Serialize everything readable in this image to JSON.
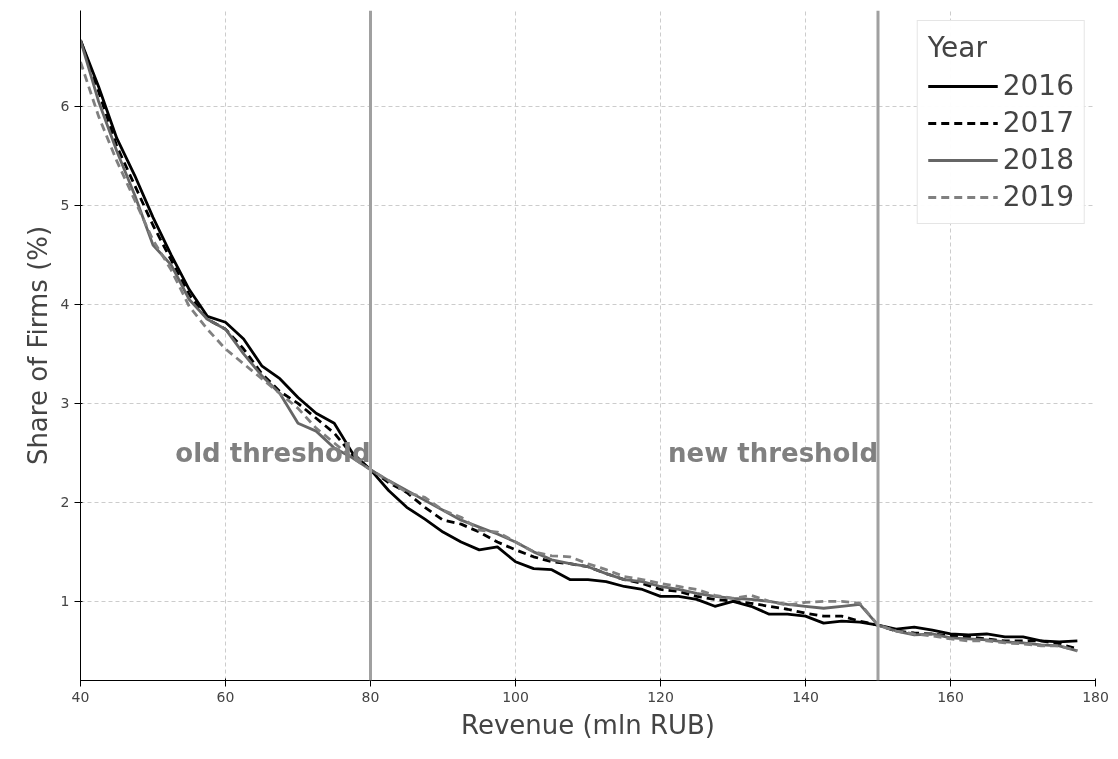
{
  "chart_data": {
    "type": "line",
    "xlabel": "Revenue (mln RUB)",
    "ylabel": "Share of Firms (%)",
    "legend_title": "Year",
    "x": [
      40,
      42.5,
      45,
      47.5,
      50,
      52.5,
      55,
      57.5,
      60,
      62.5,
      65,
      67.5,
      70,
      72.5,
      75,
      77.5,
      80,
      82.5,
      85,
      87.5,
      90,
      92.5,
      95,
      97.5,
      100,
      102.5,
      105,
      107.5,
      110,
      112.5,
      115,
      117.5,
      120,
      122.5,
      125,
      127.5,
      130,
      132.5,
      135,
      137.5,
      140,
      142.5,
      145,
      147.5,
      150,
      152.5,
      155,
      157.5,
      160,
      162.5,
      165,
      167.5,
      170,
      172.5,
      175,
      177.5
    ],
    "series": [
      {
        "name": "2016",
        "color": "#000000",
        "line_style": "solid",
        "values": [
          6.67,
          6.2,
          5.68,
          5.3,
          4.88,
          4.5,
          4.15,
          3.88,
          3.82,
          3.65,
          3.38,
          3.25,
          3.06,
          2.9,
          2.8,
          2.5,
          2.33,
          2.12,
          1.95,
          1.83,
          1.7,
          1.6,
          1.52,
          1.55,
          1.4,
          1.33,
          1.32,
          1.22,
          1.22,
          1.2,
          1.15,
          1.12,
          1.05,
          1.05,
          1.02,
          0.95,
          1.0,
          0.95,
          0.87,
          0.87,
          0.85,
          0.78,
          0.8,
          0.79,
          0.76,
          0.72,
          0.74,
          0.71,
          0.67,
          0.66,
          0.67,
          0.64,
          0.64,
          0.6,
          0.59,
          0.6
        ]
      },
      {
        "name": "2017",
        "color": "#000000",
        "line_style": "dashed",
        "values": [
          6.67,
          6.15,
          5.6,
          5.2,
          4.8,
          4.45,
          4.1,
          3.85,
          3.75,
          3.55,
          3.3,
          3.12,
          3.0,
          2.85,
          2.7,
          2.48,
          2.33,
          2.2,
          2.1,
          1.95,
          1.82,
          1.78,
          1.7,
          1.6,
          1.52,
          1.45,
          1.4,
          1.38,
          1.35,
          1.28,
          1.22,
          1.18,
          1.12,
          1.1,
          1.05,
          1.02,
          1.0,
          0.98,
          0.95,
          0.92,
          0.88,
          0.85,
          0.85,
          0.8,
          0.76,
          0.7,
          0.68,
          0.67,
          0.65,
          0.64,
          0.62,
          0.6,
          0.6,
          0.6,
          0.57,
          0.52
        ]
      },
      {
        "name": "2018",
        "color": "#666666",
        "line_style": "solid",
        "values": [
          6.67,
          6.05,
          5.55,
          5.1,
          4.6,
          4.4,
          4.05,
          3.85,
          3.75,
          3.5,
          3.28,
          3.1,
          2.8,
          2.72,
          2.55,
          2.45,
          2.33,
          2.22,
          2.12,
          2.02,
          1.92,
          1.82,
          1.75,
          1.68,
          1.6,
          1.5,
          1.42,
          1.38,
          1.35,
          1.28,
          1.22,
          1.2,
          1.15,
          1.12,
          1.08,
          1.05,
          1.03,
          1.02,
          1.0,
          0.97,
          0.95,
          0.93,
          0.95,
          0.97,
          0.76,
          0.7,
          0.66,
          0.67,
          0.63,
          0.62,
          0.61,
          0.59,
          0.58,
          0.56,
          0.55,
          0.5
        ]
      },
      {
        "name": "2019",
        "color": "#808080",
        "line_style": "dashed",
        "values": [
          6.45,
          5.9,
          5.45,
          5.05,
          4.65,
          4.35,
          3.98,
          3.75,
          3.55,
          3.4,
          3.25,
          3.1,
          2.95,
          2.75,
          2.6,
          2.45,
          2.33,
          2.22,
          2.1,
          2.05,
          1.92,
          1.85,
          1.72,
          1.7,
          1.6,
          1.5,
          1.46,
          1.45,
          1.38,
          1.32,
          1.25,
          1.22,
          1.18,
          1.15,
          1.12,
          1.06,
          1.03,
          1.06,
          1.0,
          0.96,
          0.99,
          1.0,
          1.0,
          0.98,
          0.76,
          0.7,
          0.67,
          0.65,
          0.62,
          0.6,
          0.6,
          0.58,
          0.57,
          0.55,
          0.55,
          0.5
        ]
      }
    ],
    "xlim": [
      40,
      180
    ],
    "xticks": [
      40,
      60,
      80,
      100,
      120,
      140,
      160,
      180
    ],
    "ylim": [
      0.2,
      6.97
    ],
    "yticks": [
      1,
      2,
      3,
      4,
      5,
      6
    ],
    "ref_lines": [
      {
        "axis": "x",
        "value": 80,
        "label": null,
        "color": "#a0a0a0"
      },
      {
        "axis": "x",
        "value": 150,
        "label": null,
        "color": "#a0a0a0"
      }
    ],
    "annotations": [
      {
        "text": "old threshold",
        "x": 80,
        "y": 2.5
      },
      {
        "text": "new threshold",
        "x": 150,
        "y": 2.5
      }
    ],
    "grid": true,
    "legend": "top right"
  }
}
